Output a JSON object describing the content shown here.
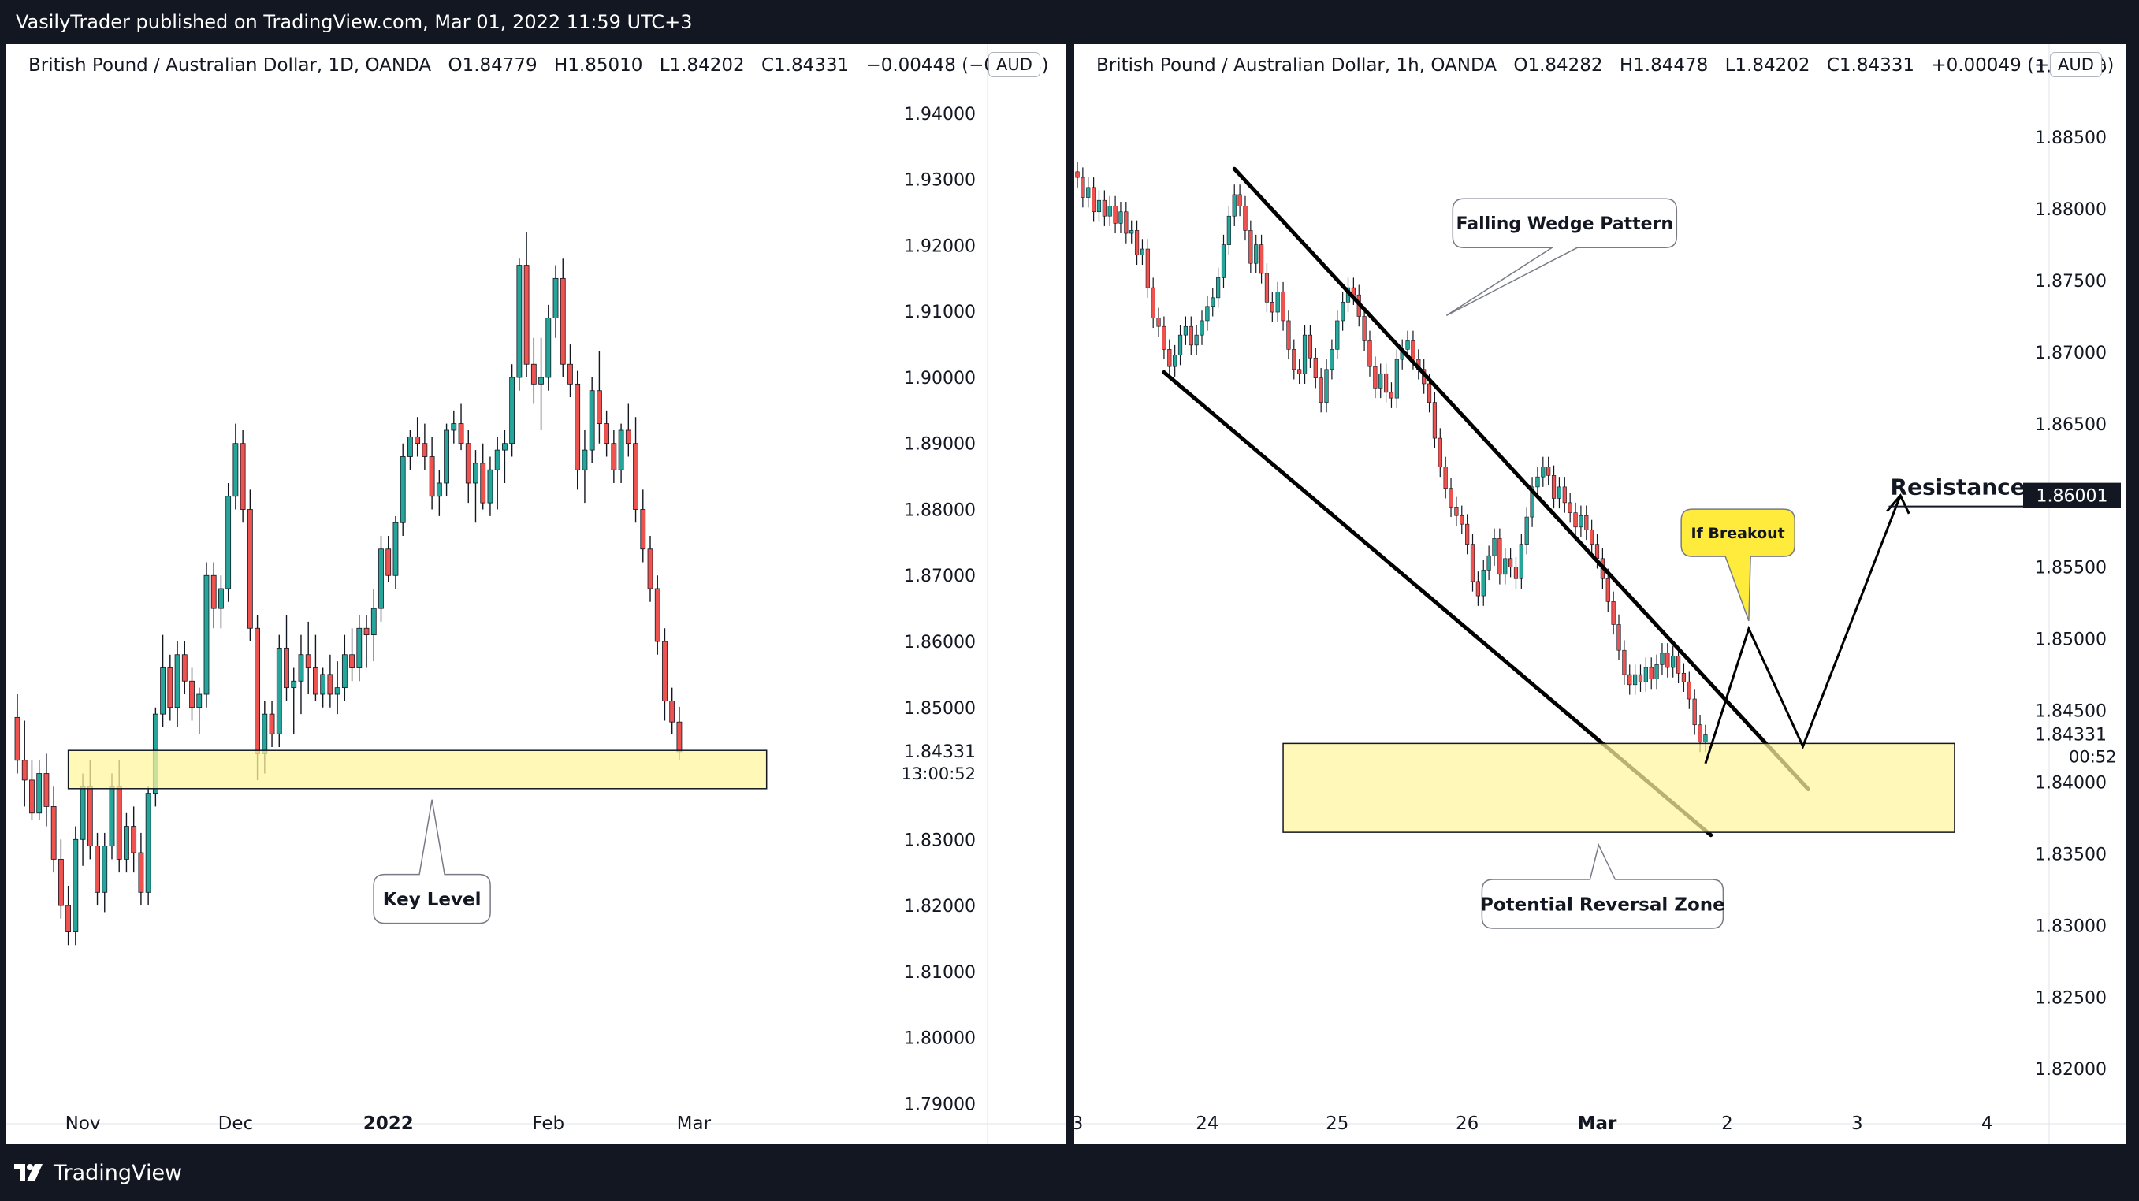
{
  "header": {
    "published_text": "VasilyTrader published on TradingView.com, Mar 01, 2022 11:59 UTC+3"
  },
  "footer": {
    "brand": "TradingView",
    "logo_icon": "tradingview-logo-icon"
  },
  "colors": {
    "background": "#131722",
    "up_candle": "#26a69a",
    "down_candle": "#ef5350",
    "zone_fill": "#fff59d",
    "zone_border": "#131722",
    "callout_yellow": "#ffeb3b"
  },
  "chart_data": [
    {
      "type": "candlestick",
      "title": "British Pound / Australian Dollar, 1D, OANDA",
      "currency_badge": "AUD",
      "ohlc": {
        "open": "O1.84779",
        "high": "H1.85010",
        "low": "L1.84202",
        "close": "C1.84331",
        "change": "−0.00448 (−0.24%)"
      },
      "y_ticks": [
        "1.94000",
        "1.93000",
        "1.92000",
        "1.91000",
        "1.90000",
        "1.89000",
        "1.88000",
        "1.87000",
        "1.86000",
        "1.85000",
        "1.83000",
        "1.82000",
        "1.81000",
        "1.80000",
        "1.79000"
      ],
      "y_tick_values": [
        1.94,
        1.93,
        1.92,
        1.91,
        1.9,
        1.89,
        1.88,
        1.87,
        1.86,
        1.85,
        1.83,
        1.82,
        1.81,
        1.8,
        1.79
      ],
      "ylim": [
        1.7855,
        1.9505
      ],
      "x_ticks": [
        {
          "label": "Nov",
          "bar": 9
        },
        {
          "label": "Dec",
          "bar": 30
        },
        {
          "label": "2022",
          "bar": 51
        },
        {
          "label": "Feb",
          "bar": 73
        },
        {
          "label": "Mar",
          "bar": 93
        }
      ],
      "x_tick_bold": "2022",
      "last_price": "1.84331",
      "countdown": "13:00:52",
      "key_level_zone": {
        "low": 1.8377,
        "high": 1.8435,
        "bar_start": 7,
        "bar_end": 103
      },
      "annotations": [
        {
          "text": "Key Level",
          "bar": 57,
          "price": 1.821
        }
      ],
      "candles": [
        [
          1.8485,
          1.852,
          1.84,
          1.842
        ],
        [
          1.842,
          1.848,
          1.835,
          1.839
        ],
        [
          1.839,
          1.842,
          1.833,
          1.834
        ],
        [
          1.834,
          1.842,
          1.833,
          1.84
        ],
        [
          1.84,
          1.843,
          1.832,
          1.835
        ],
        [
          1.835,
          1.838,
          1.825,
          1.827
        ],
        [
          1.827,
          1.83,
          1.818,
          1.82
        ],
        [
          1.82,
          1.823,
          1.814,
          1.816
        ],
        [
          1.816,
          1.832,
          1.814,
          1.83
        ],
        [
          1.83,
          1.84,
          1.826,
          1.838
        ],
        [
          1.838,
          1.842,
          1.827,
          1.829
        ],
        [
          1.829,
          1.831,
          1.82,
          1.822
        ],
        [
          1.822,
          1.831,
          1.819,
          1.829
        ],
        [
          1.829,
          1.84,
          1.827,
          1.838
        ],
        [
          1.838,
          1.842,
          1.825,
          1.827
        ],
        [
          1.827,
          1.834,
          1.825,
          1.832
        ],
        [
          1.832,
          1.835,
          1.825,
          1.828
        ],
        [
          1.828,
          1.831,
          1.82,
          1.822
        ],
        [
          1.822,
          1.838,
          1.82,
          1.837
        ],
        [
          1.837,
          1.85,
          1.835,
          1.849
        ],
        [
          1.849,
          1.861,
          1.847,
          1.856
        ],
        [
          1.856,
          1.858,
          1.848,
          1.85
        ],
        [
          1.85,
          1.86,
          1.847,
          1.858
        ],
        [
          1.858,
          1.86,
          1.852,
          1.854
        ],
        [
          1.854,
          1.856,
          1.848,
          1.85
        ],
        [
          1.85,
          1.853,
          1.846,
          1.852
        ],
        [
          1.852,
          1.872,
          1.85,
          1.87
        ],
        [
          1.87,
          1.872,
          1.862,
          1.865
        ],
        [
          1.865,
          1.87,
          1.862,
          1.868
        ],
        [
          1.868,
          1.884,
          1.866,
          1.882
        ],
        [
          1.882,
          1.893,
          1.88,
          1.89
        ],
        [
          1.89,
          1.892,
          1.878,
          1.88
        ],
        [
          1.88,
          1.883,
          1.86,
          1.862
        ],
        [
          1.862,
          1.864,
          1.839,
          1.843
        ],
        [
          1.843,
          1.851,
          1.84,
          1.849
        ],
        [
          1.849,
          1.851,
          1.844,
          1.846
        ],
        [
          1.846,
          1.861,
          1.844,
          1.859
        ],
        [
          1.859,
          1.864,
          1.851,
          1.853
        ],
        [
          1.853,
          1.856,
          1.846,
          1.854
        ],
        [
          1.854,
          1.861,
          1.849,
          1.858
        ],
        [
          1.858,
          1.863,
          1.852,
          1.856
        ],
        [
          1.856,
          1.861,
          1.851,
          1.852
        ],
        [
          1.852,
          1.856,
          1.85,
          1.855
        ],
        [
          1.855,
          1.858,
          1.85,
          1.852
        ],
        [
          1.852,
          1.857,
          1.849,
          1.853
        ],
        [
          1.853,
          1.861,
          1.851,
          1.858
        ],
        [
          1.858,
          1.862,
          1.854,
          1.856
        ],
        [
          1.856,
          1.864,
          1.854,
          1.862
        ],
        [
          1.862,
          1.864,
          1.856,
          1.861
        ],
        [
          1.861,
          1.868,
          1.857,
          1.865
        ],
        [
          1.865,
          1.876,
          1.863,
          1.874
        ],
        [
          1.874,
          1.876,
          1.869,
          1.87
        ],
        [
          1.87,
          1.879,
          1.868,
          1.878
        ],
        [
          1.878,
          1.89,
          1.876,
          1.888
        ],
        [
          1.888,
          1.892,
          1.886,
          1.891
        ],
        [
          1.891,
          1.894,
          1.888,
          1.89
        ],
        [
          1.89,
          1.893,
          1.886,
          1.888
        ],
        [
          1.888,
          1.891,
          1.88,
          1.882
        ],
        [
          1.882,
          1.886,
          1.879,
          1.884
        ],
        [
          1.884,
          1.893,
          1.882,
          1.892
        ],
        [
          1.892,
          1.895,
          1.89,
          1.893
        ],
        [
          1.893,
          1.896,
          1.889,
          1.89
        ],
        [
          1.89,
          1.892,
          1.881,
          1.884
        ],
        [
          1.884,
          1.889,
          1.878,
          1.887
        ],
        [
          1.887,
          1.89,
          1.88,
          1.881
        ],
        [
          1.881,
          1.888,
          1.879,
          1.886
        ],
        [
          1.886,
          1.891,
          1.88,
          1.889
        ],
        [
          1.889,
          1.892,
          1.884,
          1.89
        ],
        [
          1.89,
          1.902,
          1.888,
          1.9
        ],
        [
          1.9,
          1.918,
          1.898,
          1.917
        ],
        [
          1.917,
          1.922,
          1.9,
          1.902
        ],
        [
          1.902,
          1.906,
          1.896,
          1.899
        ],
        [
          1.899,
          1.906,
          1.892,
          1.9
        ],
        [
          1.9,
          1.911,
          1.898,
          1.909
        ],
        [
          1.909,
          1.917,
          1.906,
          1.915
        ],
        [
          1.915,
          1.918,
          1.9,
          1.902
        ],
        [
          1.902,
          1.905,
          1.897,
          1.899
        ],
        [
          1.899,
          1.901,
          1.883,
          1.886
        ],
        [
          1.886,
          1.892,
          1.881,
          1.889
        ],
        [
          1.889,
          1.9,
          1.887,
          1.898
        ],
        [
          1.898,
          1.904,
          1.89,
          1.893
        ],
        [
          1.893,
          1.895,
          1.888,
          1.89
        ],
        [
          1.89,
          1.892,
          1.884,
          1.886
        ],
        [
          1.886,
          1.893,
          1.884,
          1.892
        ],
        [
          1.892,
          1.896,
          1.888,
          1.89
        ],
        [
          1.89,
          1.894,
          1.878,
          1.88
        ],
        [
          1.88,
          1.883,
          1.872,
          1.874
        ],
        [
          1.874,
          1.876,
          1.866,
          1.868
        ],
        [
          1.868,
          1.87,
          1.858,
          1.86
        ],
        [
          1.86,
          1.862,
          1.848,
          1.851
        ],
        [
          1.851,
          1.853,
          1.846,
          1.8478
        ],
        [
          1.8478,
          1.8501,
          1.842,
          1.8433
        ]
      ]
    },
    {
      "type": "candlestick",
      "title": "British Pound / Australian Dollar, 1h, OANDA",
      "currency_badge": "AUD",
      "ohlc": {
        "open": "O1.84282",
        "high": "H1.84478",
        "low": "L1.84202",
        "close": "C1.84331",
        "change": "+0.00049 (+0.03%)"
      },
      "y_ticks": [
        "1.89000",
        "1.88500",
        "1.88000",
        "1.87500",
        "1.87000",
        "1.86500",
        "1.85500",
        "1.85000",
        "1.84500",
        "1.84000",
        "1.83500",
        "1.83000",
        "1.82500",
        "1.82000"
      ],
      "y_tick_values": [
        1.89,
        1.885,
        1.88,
        1.875,
        1.87,
        1.865,
        1.855,
        1.85,
        1.845,
        1.84,
        1.835,
        1.83,
        1.825,
        1.82
      ],
      "ylim": [
        1.8155,
        1.8915
      ],
      "x_ticks": [
        {
          "label": "3",
          "hour": 0
        },
        {
          "label": "24",
          "hour": 24
        },
        {
          "label": "25",
          "hour": 48
        },
        {
          "label": "26",
          "hour": 72
        },
        {
          "label": "Mar",
          "hour": 96
        },
        {
          "label": "2",
          "hour": 120
        },
        {
          "label": "3",
          "hour": 144
        },
        {
          "label": "4",
          "hour": 168
        }
      ],
      "x_tick_bold": "Mar",
      "last_price": "1.84331",
      "countdown": "00:52",
      "resistance_price": "1.86001",
      "resistance_value": 1.86001,
      "reversal_zone": {
        "low": 1.8365,
        "high": 1.8427,
        "hour_start": 38,
        "hour_end": 162
      },
      "wedge": {
        "upper": [
          [
            29,
            1.8828
          ],
          [
            135,
            1.8395
          ]
        ],
        "lower": [
          [
            16,
            1.8686
          ],
          [
            117,
            1.8363
          ]
        ]
      },
      "projection_path": [
        [
          116,
          1.8413
        ],
        [
          124,
          1.8507
        ],
        [
          134,
          1.8425
        ],
        [
          152,
          1.86
        ]
      ],
      "annotations": [
        {
          "text": "Falling Wedge Pattern",
          "hour": 90,
          "price": 1.879
        },
        {
          "text": "If Breakout",
          "hour": 122,
          "price": 1.8574
        },
        {
          "text": "Potential Reversal Zone",
          "hour": 97,
          "price": 1.8315
        },
        {
          "text": "Resistance",
          "hour": 158,
          "price": 1.8605
        }
      ],
      "closes": [
        1.8822,
        1.8808,
        1.8815,
        1.8798,
        1.8806,
        1.8795,
        1.8802,
        1.879,
        1.8798,
        1.8783,
        1.8785,
        1.8768,
        1.8772,
        1.8745,
        1.8724,
        1.8718,
        1.8702,
        1.869,
        1.8698,
        1.8712,
        1.8718,
        1.8705,
        1.8712,
        1.8722,
        1.8732,
        1.8738,
        1.8752,
        1.8775,
        1.8795,
        1.881,
        1.8802,
        1.8785,
        1.8762,
        1.8775,
        1.8755,
        1.8735,
        1.8728,
        1.8742,
        1.8722,
        1.8702,
        1.8688,
        1.8685,
        1.8712,
        1.8696,
        1.8682,
        1.8665,
        1.8688,
        1.8702,
        1.8722,
        1.8735,
        1.8745,
        1.874,
        1.8725,
        1.8708,
        1.869,
        1.8675,
        1.8685,
        1.8672,
        1.8668,
        1.8695,
        1.8702,
        1.8708,
        1.8695,
        1.8688,
        1.8678,
        1.8665,
        1.864,
        1.862,
        1.8605,
        1.8592,
        1.8586,
        1.858,
        1.8566,
        1.854,
        1.853,
        1.8548,
        1.8558,
        1.857,
        1.8545,
        1.8556,
        1.855,
        1.8542,
        1.8566,
        1.8585,
        1.8606,
        1.8613,
        1.862,
        1.8614,
        1.8598,
        1.8606,
        1.8595,
        1.8588,
        1.8578,
        1.8586,
        1.8576,
        1.8566,
        1.8556,
        1.8542,
        1.8526,
        1.851,
        1.8492,
        1.8475,
        1.8468,
        1.8475,
        1.847,
        1.848,
        1.8472,
        1.8482,
        1.849,
        1.848,
        1.8488,
        1.8476,
        1.847,
        1.8458,
        1.844,
        1.8428,
        1.8433
      ]
    }
  ]
}
